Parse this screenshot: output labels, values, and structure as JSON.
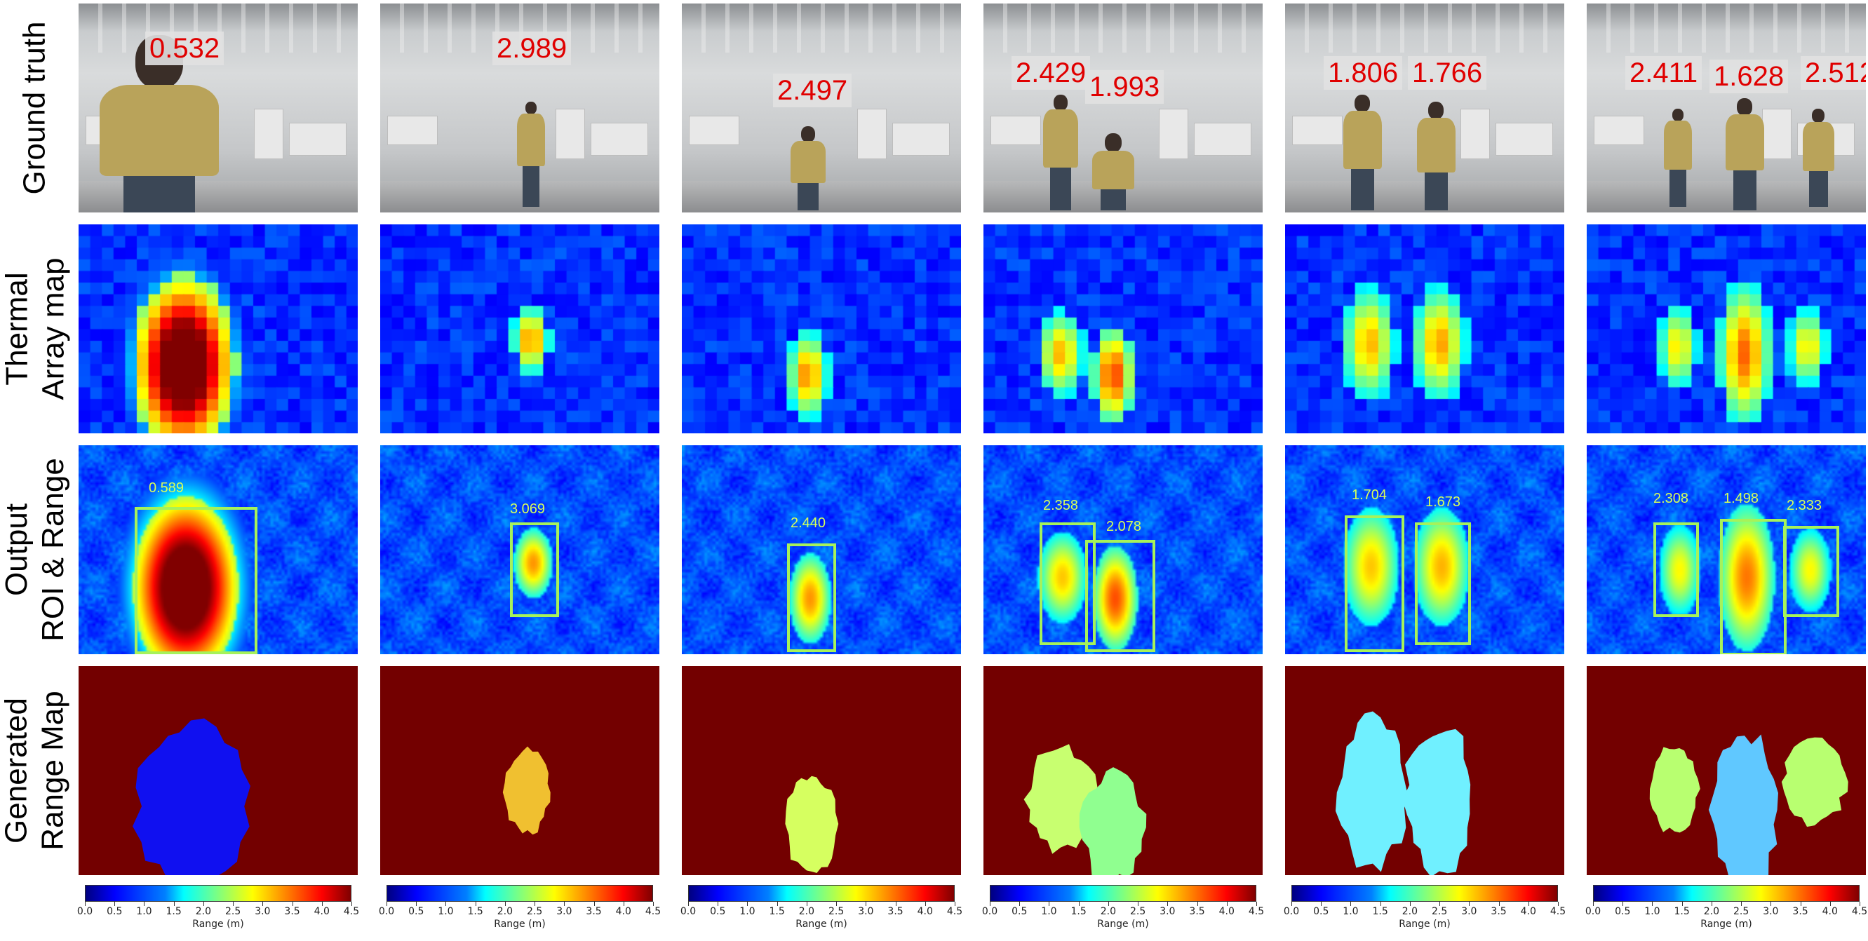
{
  "row_labels": {
    "row1": "Ground truth",
    "row2_line1": "Thermal",
    "row2_line2": "Array map",
    "row3_line1": "Output",
    "row3_line2": "ROI & Range",
    "row4_line1": "Generated",
    "row4_line2": "Range Map"
  },
  "colorbar": {
    "label": "Range (m)",
    "ticks": [
      "0.0",
      "0.5",
      "1.0",
      "1.5",
      "2.0",
      "2.5",
      "3.0",
      "3.5",
      "4.0",
      "4.5"
    ],
    "min": 0.0,
    "max": 4.5,
    "colormap": "jet"
  },
  "columns": [
    {
      "ground_truth": [
        "0.532"
      ],
      "predicted": [
        "0.589"
      ],
      "range_colors": [
        "#1010f0"
      ]
    },
    {
      "ground_truth": [
        "2.989"
      ],
      "predicted": [
        "3.069"
      ],
      "range_colors": [
        "#f0c030"
      ]
    },
    {
      "ground_truth": [
        "2.497"
      ],
      "predicted": [
        "2.440"
      ],
      "range_colors": [
        "#d6ff60"
      ]
    },
    {
      "ground_truth": [
        "2.429",
        "1.993"
      ],
      "predicted": [
        "2.358",
        "2.078"
      ],
      "range_colors": [
        "#c8ff70",
        "#90ff90"
      ]
    },
    {
      "ground_truth": [
        "1.806",
        "1.766"
      ],
      "predicted": [
        "1.704",
        "1.673"
      ],
      "range_colors": [
        "#70f0ff",
        "#70f0ff"
      ]
    },
    {
      "ground_truth": [
        "2.411",
        "1.628",
        "2.512"
      ],
      "predicted": [
        "2.308",
        "1.498",
        "2.333"
      ],
      "range_colors": [
        "#b8ff70",
        "#60c8ff",
        "#b8ff70"
      ]
    }
  ],
  "colors": {
    "gt_text": "#e00000",
    "roi_box": "#a6f25a",
    "roi_text": "#d6ff5a",
    "range_background": "#730000"
  }
}
